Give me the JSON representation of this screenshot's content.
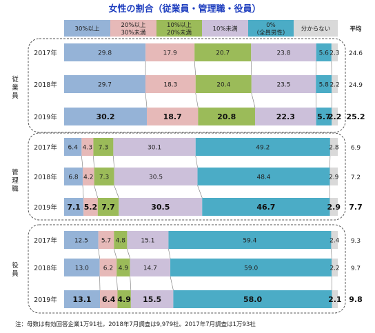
{
  "chart_data": {
    "type": "bar",
    "stacked": "100%",
    "orientation": "horizontal",
    "title": "女性の割合（従業員・管理職・役員）",
    "legend": [
      {
        "label": "30%以上",
        "color": "#95b3d7"
      },
      {
        "label": "20%以上\n30%未満",
        "color": "#e6b9b8"
      },
      {
        "label": "10%以上\n20%未満",
        "color": "#9bbb59"
      },
      {
        "label": "10%未満",
        "color": "#ccc0da"
      },
      {
        "label": "0%\n(全員男性)",
        "color": "#4bacc6"
      },
      {
        "label": "分からない",
        "color": "#d9d9d9"
      }
    ],
    "average_header": "平均",
    "groups": [
      {
        "name": "従業員",
        "rows": [
          {
            "year": "2017年",
            "values": [
              29.8,
              17.9,
              20.7,
              23.8,
              5.6,
              2.3
            ],
            "average": 24.6,
            "bold": false
          },
          {
            "year": "2018年",
            "values": [
              29.7,
              18.3,
              20.4,
              23.5,
              5.8,
              2.2
            ],
            "average": 24.9,
            "bold": false
          },
          {
            "year": "2019年",
            "values": [
              30.2,
              18.7,
              20.8,
              22.3,
              5.7,
              2.2
            ],
            "average": 25.2,
            "bold": true
          }
        ]
      },
      {
        "name": "管理職",
        "rows": [
          {
            "year": "2017年",
            "values": [
              6.4,
              4.3,
              7.3,
              30.1,
              49.2,
              2.8
            ],
            "average": 6.9,
            "bold": false
          },
          {
            "year": "2018年",
            "values": [
              6.8,
              4.2,
              7.3,
              30.5,
              48.4,
              2.9
            ],
            "average": 7.2,
            "bold": false
          },
          {
            "year": "2019年",
            "values": [
              7.1,
              5.2,
              7.7,
              30.5,
              46.7,
              2.9
            ],
            "average": 7.7,
            "bold": true
          }
        ]
      },
      {
        "name": "役員",
        "rows": [
          {
            "year": "2017年",
            "values": [
              12.5,
              5.7,
              4.8,
              15.1,
              59.4,
              2.4
            ],
            "average": 9.3,
            "bold": false
          },
          {
            "year": "2018年",
            "values": [
              13.0,
              6.2,
              4.9,
              14.7,
              59.0,
              2.2
            ],
            "average": 9.7,
            "bold": false
          },
          {
            "year": "2019年",
            "values": [
              13.1,
              6.4,
              4.9,
              15.5,
              58.0,
              2.1
            ],
            "average": 9.8,
            "bold": true
          }
        ]
      }
    ],
    "note": "注：母数は有効回答企業1万91社。2018年7月調査は9,979社。2017年7月調査は1万93社"
  }
}
